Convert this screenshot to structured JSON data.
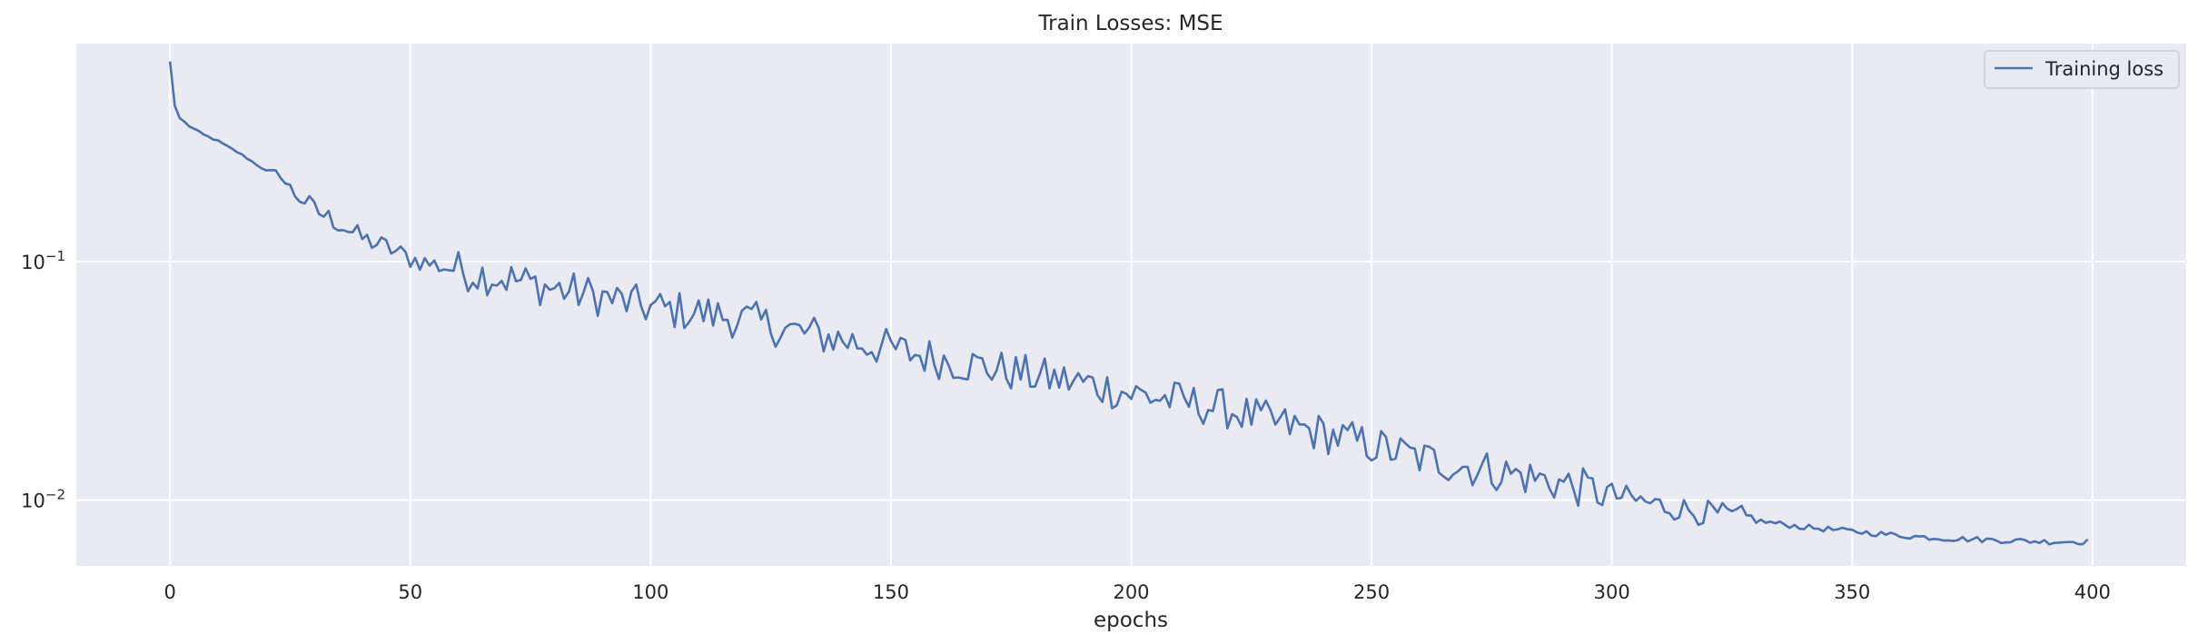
{
  "chart_data": {
    "type": "line",
    "title": "Train Losses:  MSE",
    "xlabel": "epochs",
    "ylabel": "",
    "yscale": "log",
    "grid": true,
    "legend_position": "top-right",
    "colors": {
      "background": "#eaeaf2",
      "grid": "#ffffff",
      "line": "#4c72b0"
    },
    "xlim": [
      -19.5,
      419.5
    ],
    "ylim": [
      0.0053,
      0.82
    ],
    "xticks": [
      0,
      50,
      100,
      150,
      200,
      250,
      300,
      350,
      400
    ],
    "xtick_labels": [
      "0",
      "50",
      "100",
      "150",
      "200",
      "250",
      "300",
      "350",
      "400"
    ],
    "yticks": [
      0.1,
      0.01
    ],
    "ytick_labels": [
      {
        "base": "10",
        "exp": "−1"
      },
      {
        "base": "10",
        "exp": "−2"
      }
    ],
    "series": [
      {
        "name": "Training loss",
        "keypoints": [
          [
            0,
            0.69
          ],
          [
            1,
            0.45
          ],
          [
            2,
            0.4
          ],
          [
            4,
            0.37
          ],
          [
            7,
            0.34
          ],
          [
            10,
            0.32
          ],
          [
            15,
            0.28
          ],
          [
            20,
            0.24
          ],
          [
            22,
            0.24
          ],
          [
            25,
            0.2
          ],
          [
            28,
            0.18
          ],
          [
            30,
            0.165
          ],
          [
            35,
            0.145
          ],
          [
            40,
            0.125
          ],
          [
            45,
            0.115
          ],
          [
            50,
            0.103
          ],
          [
            55,
            0.097
          ],
          [
            60,
            0.092
          ],
          [
            70,
            0.085
          ],
          [
            80,
            0.077
          ],
          [
            90,
            0.071
          ],
          [
            100,
            0.064
          ],
          [
            110,
            0.061
          ],
          [
            120,
            0.057
          ],
          [
            130,
            0.051
          ],
          [
            140,
            0.047
          ],
          [
            150,
            0.043
          ],
          [
            160,
            0.039
          ],
          [
            170,
            0.036
          ],
          [
            180,
            0.033
          ],
          [
            190,
            0.031
          ],
          [
            200,
            0.028
          ],
          [
            210,
            0.026
          ],
          [
            220,
            0.024
          ],
          [
            230,
            0.021
          ],
          [
            240,
            0.019
          ],
          [
            250,
            0.017
          ],
          [
            260,
            0.015
          ],
          [
            270,
            0.0138
          ],
          [
            280,
            0.0128
          ],
          [
            290,
            0.0117
          ],
          [
            300,
            0.0105
          ],
          [
            310,
            0.0095
          ],
          [
            320,
            0.0088
          ],
          [
            330,
            0.0082
          ],
          [
            340,
            0.0077
          ],
          [
            350,
            0.0074
          ],
          [
            360,
            0.0071
          ],
          [
            370,
            0.0069
          ],
          [
            380,
            0.0068
          ],
          [
            390,
            0.0067
          ],
          [
            399,
            0.0067
          ]
        ]
      }
    ]
  }
}
